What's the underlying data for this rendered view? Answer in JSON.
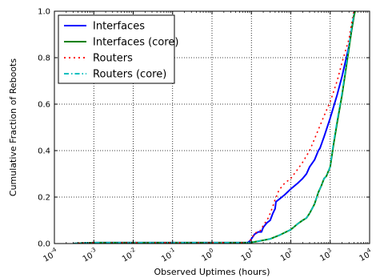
{
  "chart_data": {
    "type": "line",
    "xlabel": "Observed Uptimes (hours)",
    "ylabel": "Cumulative Fraction of Reboots",
    "x_scale": "log",
    "xlim": [
      0.0001,
      10000
    ],
    "ylim": [
      0,
      1
    ],
    "x_ticks": [
      {
        "value": 0.0001,
        "base": "10",
        "exp": "-4"
      },
      {
        "value": 0.001,
        "base": "10",
        "exp": "-3"
      },
      {
        "value": 0.01,
        "base": "10",
        "exp": "-2"
      },
      {
        "value": 0.1,
        "base": "10",
        "exp": "-1"
      },
      {
        "value": 1,
        "base": "10",
        "exp": "0"
      },
      {
        "value": 10,
        "base": "10",
        "exp": "1"
      },
      {
        "value": 100,
        "base": "10",
        "exp": "2"
      },
      {
        "value": 1000,
        "base": "10",
        "exp": "3"
      },
      {
        "value": 10000,
        "base": "10",
        "exp": "4"
      }
    ],
    "y_ticks": [
      {
        "value": 0,
        "label": "0.0"
      },
      {
        "value": 0.2,
        "label": "0.2"
      },
      {
        "value": 0.4,
        "label": "0.4"
      },
      {
        "value": 0.6,
        "label": "0.6"
      },
      {
        "value": 0.8,
        "label": "0.8"
      },
      {
        "value": 1,
        "label": "1.0"
      }
    ],
    "grid": true,
    "legend_position": "top-left",
    "series": [
      {
        "name": "Interfaces",
        "color": "#0000ff",
        "dash": "solid",
        "points": [
          [
            0.0003,
            0.0
          ],
          [
            0.0005,
            0.002
          ],
          [
            0.001,
            0.004
          ],
          [
            0.01,
            0.004
          ],
          [
            0.1,
            0.004
          ],
          [
            1,
            0.004
          ],
          [
            8,
            0.004
          ],
          [
            9,
            0.01
          ],
          [
            10,
            0.02
          ],
          [
            12,
            0.04
          ],
          [
            15,
            0.05
          ],
          [
            18,
            0.05
          ],
          [
            20,
            0.07
          ],
          [
            25,
            0.09
          ],
          [
            30,
            0.1
          ],
          [
            35,
            0.13
          ],
          [
            40,
            0.15
          ],
          [
            42,
            0.18
          ],
          [
            50,
            0.19
          ],
          [
            70,
            0.21
          ],
          [
            100,
            0.235
          ],
          [
            150,
            0.26
          ],
          [
            200,
            0.28
          ],
          [
            250,
            0.3
          ],
          [
            300,
            0.33
          ],
          [
            400,
            0.36
          ],
          [
            500,
            0.4
          ],
          [
            550,
            0.41
          ],
          [
            700,
            0.46
          ],
          [
            1000,
            0.54
          ],
          [
            1500,
            0.64
          ],
          [
            2000,
            0.72
          ],
          [
            3000,
            0.85
          ],
          [
            4000,
            0.98
          ],
          [
            4200,
            1.0
          ]
        ]
      },
      {
        "name": "Interfaces (core)",
        "color": "#008000",
        "dash": "solid",
        "points": [
          [
            0.0003,
            0.0
          ],
          [
            0.0005,
            0.002
          ],
          [
            0.001,
            0.004
          ],
          [
            0.01,
            0.004
          ],
          [
            0.1,
            0.004
          ],
          [
            1,
            0.004
          ],
          [
            9,
            0.004
          ],
          [
            15,
            0.01
          ],
          [
            30,
            0.02
          ],
          [
            50,
            0.035
          ],
          [
            100,
            0.06
          ],
          [
            150,
            0.085
          ],
          [
            200,
            0.1
          ],
          [
            250,
            0.11
          ],
          [
            300,
            0.13
          ],
          [
            400,
            0.17
          ],
          [
            500,
            0.22
          ],
          [
            600,
            0.25
          ],
          [
            700,
            0.28
          ],
          [
            800,
            0.29
          ],
          [
            1000,
            0.33
          ],
          [
            1200,
            0.42
          ],
          [
            1500,
            0.52
          ],
          [
            2000,
            0.64
          ],
          [
            2500,
            0.75
          ],
          [
            3000,
            0.84
          ],
          [
            3500,
            0.92
          ],
          [
            4000,
            0.98
          ],
          [
            4300,
            1.0
          ]
        ]
      },
      {
        "name": "Routers",
        "color": "#ff0000",
        "dash": "dot",
        "points": [
          [
            0.0003,
            0.0
          ],
          [
            0.0005,
            0.002
          ],
          [
            0.001,
            0.004
          ],
          [
            0.01,
            0.004
          ],
          [
            0.1,
            0.004
          ],
          [
            1,
            0.004
          ],
          [
            8,
            0.004
          ],
          [
            9,
            0.01
          ],
          [
            10,
            0.02
          ],
          [
            12,
            0.045
          ],
          [
            15,
            0.05
          ],
          [
            18,
            0.06
          ],
          [
            20,
            0.08
          ],
          [
            25,
            0.1
          ],
          [
            30,
            0.13
          ],
          [
            35,
            0.16
          ],
          [
            40,
            0.19
          ],
          [
            45,
            0.21
          ],
          [
            50,
            0.23
          ],
          [
            70,
            0.26
          ],
          [
            100,
            0.28
          ],
          [
            150,
            0.32
          ],
          [
            200,
            0.35
          ],
          [
            300,
            0.4
          ],
          [
            400,
            0.45
          ],
          [
            500,
            0.49
          ],
          [
            700,
            0.55
          ],
          [
            1000,
            0.61
          ],
          [
            1500,
            0.7
          ],
          [
            2000,
            0.78
          ],
          [
            3000,
            0.88
          ],
          [
            3500,
            0.95
          ],
          [
            4000,
            1.0
          ]
        ]
      },
      {
        "name": "Routers (core)",
        "color": "#00bfbf",
        "dash": "dashdot",
        "points": [
          [
            0.0003,
            0.0
          ],
          [
            0.0005,
            0.002
          ],
          [
            0.001,
            0.004
          ],
          [
            0.01,
            0.004
          ],
          [
            0.1,
            0.004
          ],
          [
            1,
            0.004
          ],
          [
            9,
            0.004
          ],
          [
            15,
            0.01
          ],
          [
            30,
            0.02
          ],
          [
            50,
            0.035
          ],
          [
            100,
            0.06
          ],
          [
            150,
            0.085
          ],
          [
            200,
            0.1
          ],
          [
            250,
            0.11
          ],
          [
            300,
            0.13
          ],
          [
            400,
            0.17
          ],
          [
            500,
            0.22
          ],
          [
            600,
            0.25
          ],
          [
            700,
            0.28
          ],
          [
            800,
            0.29
          ],
          [
            1000,
            0.33
          ],
          [
            1200,
            0.43
          ],
          [
            1500,
            0.53
          ],
          [
            2000,
            0.65
          ],
          [
            2500,
            0.76
          ],
          [
            3000,
            0.85
          ],
          [
            3500,
            0.93
          ],
          [
            4000,
            0.99
          ],
          [
            4300,
            1.0
          ]
        ]
      }
    ]
  }
}
